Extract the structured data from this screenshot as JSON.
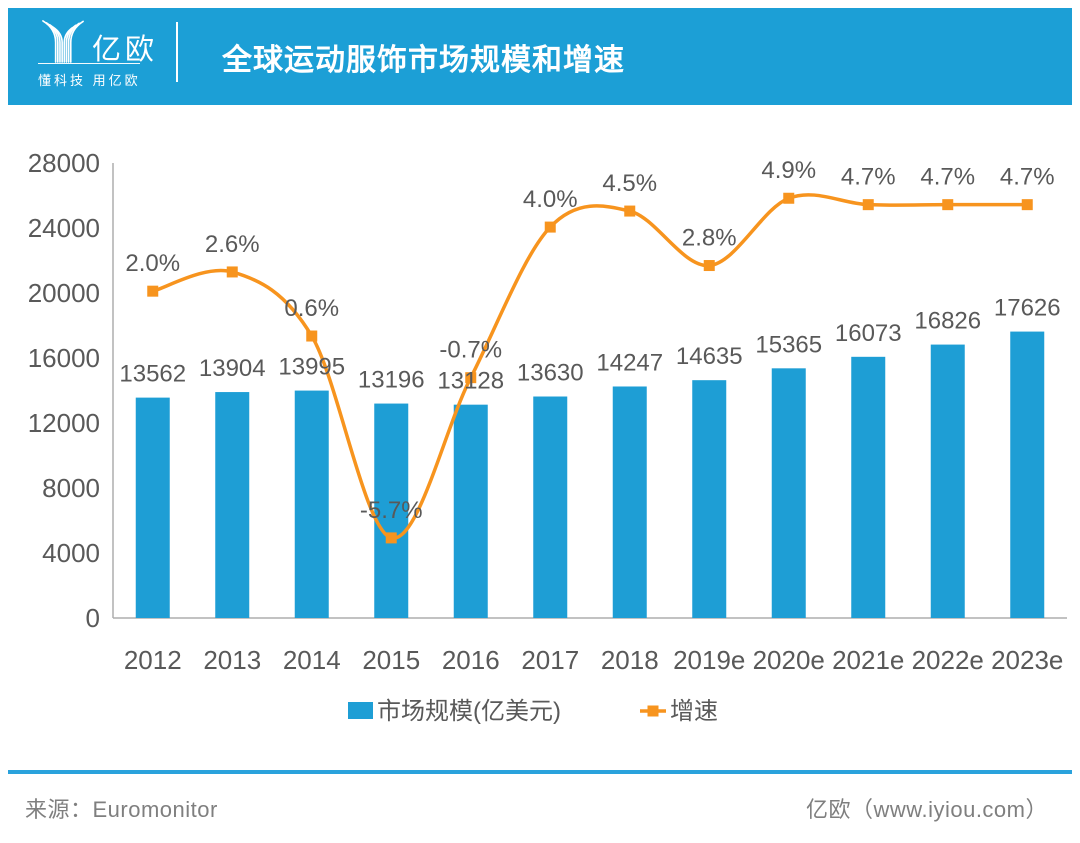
{
  "header": {
    "logo_name": "亿欧",
    "logo_tagline": "懂科技 用亿欧",
    "title": "全球运动服饰市场规模和增速"
  },
  "chart_data": {
    "type": "bar",
    "subtype": "bar+line-combo",
    "title": "全球运动服饰市场规模和增速",
    "categories": [
      "2012",
      "2013",
      "2014",
      "2015",
      "2016",
      "2017",
      "2018",
      "2019e",
      "2020e",
      "2021e",
      "2022e",
      "2023e"
    ],
    "series": [
      {
        "name": "市场规模(亿美元)",
        "type": "bar",
        "axis": "primary",
        "color": "#1E9ED5",
        "values": [
          13562,
          13904,
          13995,
          13196,
          13128,
          13630,
          14247,
          14635,
          15365,
          16073,
          16826,
          17626
        ],
        "value_labels": [
          "13562",
          "13904",
          "13995",
          "13196",
          "13128",
          "13630",
          "14247",
          "14635",
          "15365",
          "16073",
          "16826",
          "17626"
        ]
      },
      {
        "name": "增速",
        "type": "line",
        "axis": "secondary",
        "color": "#F7941E",
        "values": [
          2.0,
          2.6,
          0.6,
          -5.7,
          -0.7,
          4.0,
          4.5,
          2.8,
          4.9,
          4.7,
          4.7,
          4.7
        ],
        "value_labels": [
          "2.0%",
          "2.6%",
          "0.6%",
          "-5.7%",
          "-0.7%",
          "4.0%",
          "4.5%",
          "2.8%",
          "4.9%",
          "4.7%",
          "4.7%",
          "4.7%"
        ]
      }
    ],
    "ylim": [
      0,
      28000
    ],
    "ytick_step": 4000,
    "yticklabels": [
      "0",
      "4000",
      "8000",
      "12000",
      "16000",
      "20000",
      "24000",
      "28000"
    ],
    "y2lim": [
      -8.2,
      6.0
    ],
    "grid": false,
    "legend_position": "bottom-center",
    "xlabel": "",
    "ylabel": ""
  },
  "legend": {
    "market_label": "市场规模(亿美元)",
    "growth_label": "增速"
  },
  "footer": {
    "source": "来源：Euromonitor",
    "brand": "亿欧（www.iyiou.com）"
  },
  "colors": {
    "header_bg": "#1C9FD6",
    "bar": "#1E9ED5",
    "line": "#F7941E",
    "axis_line": "#ADADAD",
    "label_text": "#595959",
    "footer_text": "#7F7F7F",
    "footer_rule": "#2AA2DC"
  }
}
